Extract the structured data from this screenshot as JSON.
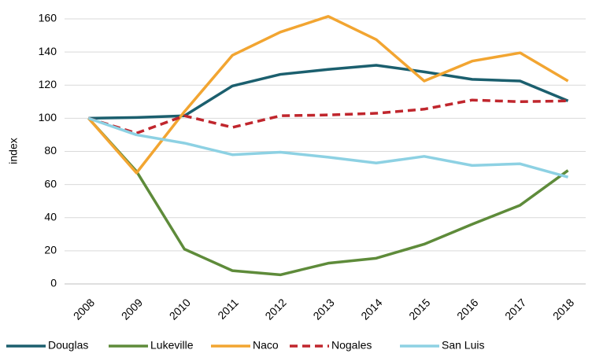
{
  "chart_data": {
    "type": "line",
    "y_label": "index",
    "categories": [
      "2008",
      "2009",
      "2010",
      "2011",
      "2012",
      "2013",
      "2014",
      "2015",
      "2016",
      "2017",
      "2018"
    ],
    "series": [
      {
        "name": "Douglas",
        "color": "#1b5f6e",
        "values": [
          100,
          100.5,
          101.5,
          119.5,
          126.5,
          129.5,
          132,
          128,
          123.5,
          122.5,
          110.5
        ]
      },
      {
        "name": "Lukeville",
        "color": "#5e8b3a",
        "values": [
          100,
          68,
          21,
          8,
          5.5,
          12.5,
          15.5,
          24,
          36,
          47.5,
          68.5
        ]
      },
      {
        "name": "Naco",
        "color": "#f2a531",
        "values": [
          100,
          67,
          104,
          138,
          152,
          161.5,
          147.5,
          122.5,
          134.5,
          139.5,
          122.5
        ]
      },
      {
        "name": "Nogales",
        "color": "#c0262d",
        "dashed": true,
        "values": [
          100,
          91,
          101.5,
          94.5,
          101.5,
          102,
          103,
          105.5,
          111,
          110,
          110.5
        ]
      },
      {
        "name": "San Luis",
        "color": "#8dd1e3",
        "values": [
          100,
          90,
          85,
          78,
          79.5,
          76.5,
          73,
          77,
          71.5,
          72.5,
          64.5
        ]
      }
    ],
    "ylim": [
      0,
      160
    ],
    "yticks": [
      0,
      20,
      40,
      60,
      80,
      100,
      120,
      140,
      160
    ],
    "grid": true,
    "legend": "bottom"
  }
}
